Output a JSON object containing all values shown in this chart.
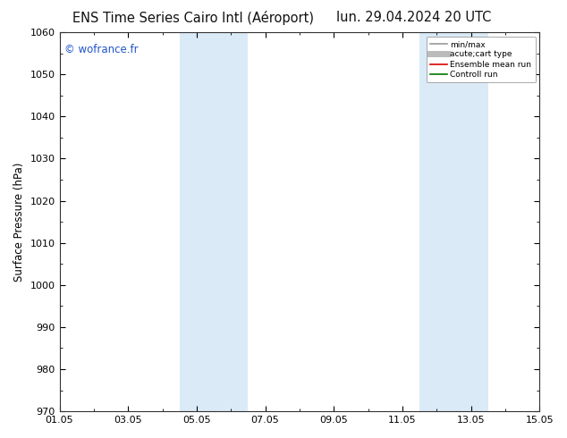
{
  "title_left": "ENS Time Series Cairo Intl (Aéroport)",
  "title_right": "lun. 29.04.2024 20 UTC",
  "ylabel": "Surface Pressure (hPa)",
  "ylim": [
    970,
    1060
  ],
  "yticks": [
    970,
    980,
    990,
    1000,
    1010,
    1020,
    1030,
    1040,
    1050,
    1060
  ],
  "xlim_start": 0,
  "xlim_end": 14,
  "xtick_positions": [
    0,
    2,
    4,
    6,
    8,
    10,
    12,
    14
  ],
  "xtick_labels": [
    "01.05",
    "03.05",
    "05.05",
    "07.05",
    "09.05",
    "11.05",
    "13.05",
    "15.05"
  ],
  "blue_bands": [
    {
      "xmin": 3.5,
      "xmax": 5.5
    },
    {
      "xmin": 10.5,
      "xmax": 12.5
    }
  ],
  "blue_band_color": "#daeaf7",
  "watermark": "© wofrance.fr",
  "watermark_color": "#2255cc",
  "legend_entries": [
    {
      "label": "min/max",
      "color": "#999999",
      "lw": 1.2
    },
    {
      "label": "acute;cart type",
      "color": "#bbbbbb",
      "lw": 5
    },
    {
      "label": "Ensemble mean run",
      "color": "#dd0000",
      "lw": 1.2
    },
    {
      "label": "Controll run",
      "color": "#007700",
      "lw": 1.2
    }
  ],
  "background_color": "#ffffff",
  "title_fontsize": 10.5,
  "tick_fontsize": 8,
  "ylabel_fontsize": 8.5
}
